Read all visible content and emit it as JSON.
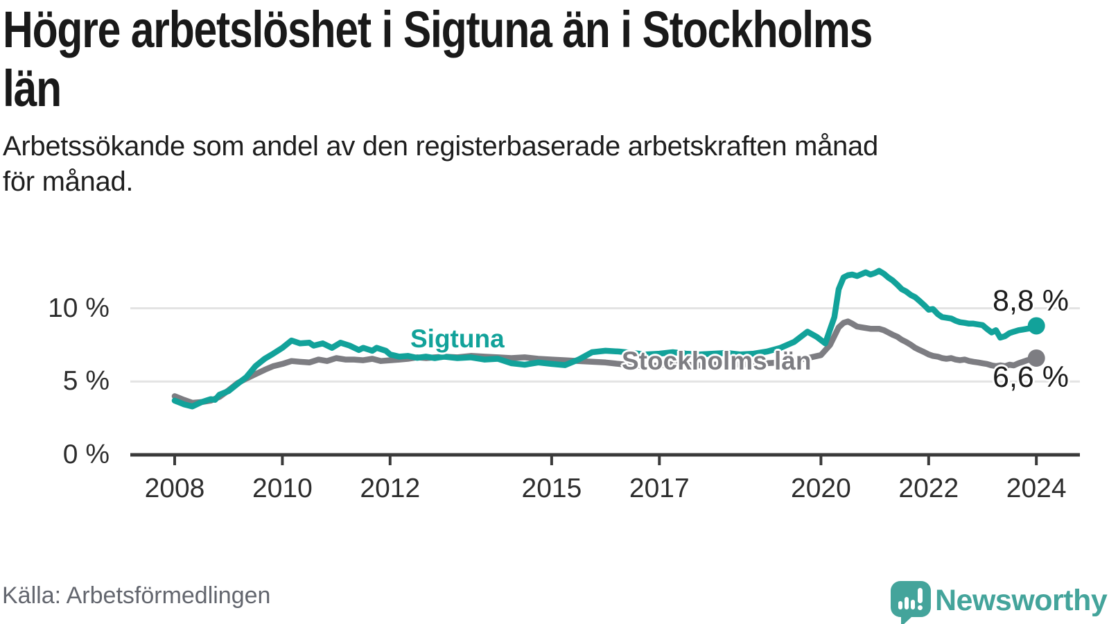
{
  "header": {
    "title_line1": "Högre arbetslöshet i Sigtuna än i Stockholms",
    "title_line2": "län",
    "subtitle_line1": "Arbetssökande som andel av den registerbaserade arbetskraften månad",
    "subtitle_line2": "för månad."
  },
  "source_text": "Källa: Arbetsförmedlingen",
  "logo": {
    "brand": "Newsworthy",
    "icon": "newsworthy-bubble-chart-icon",
    "color": "#44a49b"
  },
  "colors": {
    "sigtuna_teal": "#12a29a",
    "stockholm_gray": "#7d7d82",
    "gridline": "#e3e3e3",
    "axis": "#3a3a3a",
    "tick_text": "#2d2d2d",
    "title_text": "#191919",
    "source_text": "#63666e"
  },
  "chart_data": {
    "type": "line",
    "title": "Högre arbetslöshet i Sigtuna än i Stockholms län",
    "subtitle": "Arbetssökande som andel av den registerbaserade arbetskraften månad för månad.",
    "unit": "%",
    "xlabel": "",
    "ylabel": "",
    "grid": "horizontal",
    "legend_position": "inline-labels",
    "xlim": [
      2007.2,
      2024.8
    ],
    "ylim": [
      0,
      13.1
    ],
    "x_ticks": [
      2008,
      2010,
      2012,
      2015,
      2017,
      2020,
      2022,
      2024
    ],
    "y_ticks": [
      {
        "value": 0,
        "label": "0 %"
      },
      {
        "value": 5,
        "label": "5 %"
      },
      {
        "value": 10,
        "label": "10 %"
      }
    ],
    "series": [
      {
        "name": "Sigtuna",
        "color": "#12a29a",
        "end_label": "8,8 %",
        "end_value": 8.8,
        "points": [
          [
            2008.0,
            3.7
          ],
          [
            2008.17,
            3.45
          ],
          [
            2008.33,
            3.3
          ],
          [
            2008.5,
            3.6
          ],
          [
            2008.67,
            3.8
          ],
          [
            2008.75,
            3.75
          ],
          [
            2008.83,
            4.1
          ],
          [
            2009.0,
            4.35
          ],
          [
            2009.17,
            4.85
          ],
          [
            2009.33,
            5.3
          ],
          [
            2009.5,
            6.05
          ],
          [
            2009.67,
            6.55
          ],
          [
            2009.83,
            6.9
          ],
          [
            2010.0,
            7.3
          ],
          [
            2010.17,
            7.8
          ],
          [
            2010.33,
            7.6
          ],
          [
            2010.5,
            7.65
          ],
          [
            2010.58,
            7.45
          ],
          [
            2010.75,
            7.6
          ],
          [
            2010.92,
            7.3
          ],
          [
            2011.08,
            7.65
          ],
          [
            2011.25,
            7.45
          ],
          [
            2011.42,
            7.15
          ],
          [
            2011.5,
            7.3
          ],
          [
            2011.67,
            7.1
          ],
          [
            2011.75,
            7.3
          ],
          [
            2011.92,
            7.1
          ],
          [
            2012.0,
            6.85
          ],
          [
            2012.17,
            6.7
          ],
          [
            2012.33,
            6.75
          ],
          [
            2012.5,
            6.62
          ],
          [
            2012.67,
            6.7
          ],
          [
            2012.83,
            6.6
          ],
          [
            2013.0,
            6.7
          ],
          [
            2013.25,
            6.6
          ],
          [
            2013.5,
            6.65
          ],
          [
            2013.75,
            6.5
          ],
          [
            2014.0,
            6.55
          ],
          [
            2014.25,
            6.25
          ],
          [
            2014.5,
            6.15
          ],
          [
            2014.75,
            6.3
          ],
          [
            2015.0,
            6.2
          ],
          [
            2015.25,
            6.12
          ],
          [
            2015.5,
            6.5
          ],
          [
            2015.75,
            7.0
          ],
          [
            2016.0,
            7.1
          ],
          [
            2016.25,
            7.05
          ],
          [
            2016.5,
            6.95
          ],
          [
            2016.75,
            6.85
          ],
          [
            2017.0,
            6.9
          ],
          [
            2017.25,
            7.0
          ],
          [
            2017.5,
            6.9
          ],
          [
            2017.75,
            6.85
          ],
          [
            2018.0,
            6.9
          ],
          [
            2018.25,
            6.95
          ],
          [
            2018.5,
            6.85
          ],
          [
            2018.75,
            6.9
          ],
          [
            2019.0,
            7.05
          ],
          [
            2019.25,
            7.3
          ],
          [
            2019.5,
            7.7
          ],
          [
            2019.75,
            8.4
          ],
          [
            2019.92,
            8.05
          ],
          [
            2020.08,
            7.6
          ],
          [
            2020.25,
            9.4
          ],
          [
            2020.33,
            11.3
          ],
          [
            2020.42,
            12.1
          ],
          [
            2020.5,
            12.25
          ],
          [
            2020.58,
            12.3
          ],
          [
            2020.67,
            12.2
          ],
          [
            2020.83,
            12.45
          ],
          [
            2020.92,
            12.3
          ],
          [
            2021.0,
            12.4
          ],
          [
            2021.08,
            12.55
          ],
          [
            2021.17,
            12.35
          ],
          [
            2021.25,
            12.1
          ],
          [
            2021.33,
            11.9
          ],
          [
            2021.42,
            11.6
          ],
          [
            2021.5,
            11.3
          ],
          [
            2021.58,
            11.15
          ],
          [
            2021.67,
            10.9
          ],
          [
            2021.75,
            10.75
          ],
          [
            2021.83,
            10.5
          ],
          [
            2021.92,
            10.2
          ],
          [
            2022.0,
            9.9
          ],
          [
            2022.08,
            9.95
          ],
          [
            2022.17,
            9.6
          ],
          [
            2022.25,
            9.4
          ],
          [
            2022.33,
            9.35
          ],
          [
            2022.42,
            9.3
          ],
          [
            2022.5,
            9.15
          ],
          [
            2022.58,
            9.05
          ],
          [
            2022.67,
            9.0
          ],
          [
            2022.75,
            8.95
          ],
          [
            2022.83,
            8.95
          ],
          [
            2022.92,
            8.9
          ],
          [
            2023.0,
            8.85
          ],
          [
            2023.08,
            8.6
          ],
          [
            2023.17,
            8.35
          ],
          [
            2023.25,
            8.5
          ],
          [
            2023.33,
            8.0
          ],
          [
            2023.42,
            8.1
          ],
          [
            2023.5,
            8.3
          ],
          [
            2023.58,
            8.4
          ],
          [
            2023.67,
            8.5
          ],
          [
            2023.75,
            8.55
          ],
          [
            2023.83,
            8.6
          ],
          [
            2023.92,
            8.65
          ],
          [
            2024.0,
            8.8
          ]
        ]
      },
      {
        "name": "Stockholms län",
        "color": "#7d7d82",
        "end_label": "6,6 %",
        "end_value": 6.6,
        "points": [
          [
            2008.0,
            4.0
          ],
          [
            2008.17,
            3.75
          ],
          [
            2008.33,
            3.55
          ],
          [
            2008.5,
            3.6
          ],
          [
            2008.67,
            3.7
          ],
          [
            2008.83,
            3.95
          ],
          [
            2009.0,
            4.4
          ],
          [
            2009.17,
            4.9
          ],
          [
            2009.33,
            5.2
          ],
          [
            2009.5,
            5.5
          ],
          [
            2009.67,
            5.8
          ],
          [
            2009.83,
            6.05
          ],
          [
            2010.0,
            6.2
          ],
          [
            2010.17,
            6.4
          ],
          [
            2010.33,
            6.35
          ],
          [
            2010.5,
            6.3
          ],
          [
            2010.67,
            6.5
          ],
          [
            2010.83,
            6.4
          ],
          [
            2011.0,
            6.6
          ],
          [
            2011.17,
            6.5
          ],
          [
            2011.33,
            6.5
          ],
          [
            2011.5,
            6.45
          ],
          [
            2011.67,
            6.55
          ],
          [
            2011.83,
            6.4
          ],
          [
            2012.0,
            6.45
          ],
          [
            2012.17,
            6.5
          ],
          [
            2012.33,
            6.55
          ],
          [
            2012.5,
            6.65
          ],
          [
            2012.67,
            6.6
          ],
          [
            2012.83,
            6.65
          ],
          [
            2013.0,
            6.7
          ],
          [
            2013.25,
            6.65
          ],
          [
            2013.5,
            6.75
          ],
          [
            2013.75,
            6.7
          ],
          [
            2014.0,
            6.65
          ],
          [
            2014.25,
            6.6
          ],
          [
            2014.5,
            6.65
          ],
          [
            2014.75,
            6.55
          ],
          [
            2015.0,
            6.5
          ],
          [
            2015.25,
            6.45
          ],
          [
            2015.5,
            6.4
          ],
          [
            2015.75,
            6.35
          ],
          [
            2016.0,
            6.3
          ],
          [
            2016.25,
            6.2
          ],
          [
            2016.5,
            6.1
          ],
          [
            2016.75,
            6.05
          ],
          [
            2017.0,
            6.1
          ],
          [
            2017.25,
            6.2
          ],
          [
            2017.5,
            6.15
          ],
          [
            2017.75,
            6.1
          ],
          [
            2018.0,
            6.15
          ],
          [
            2018.25,
            6.2
          ],
          [
            2018.5,
            6.15
          ],
          [
            2018.75,
            6.2
          ],
          [
            2019.0,
            6.25
          ],
          [
            2019.25,
            6.3
          ],
          [
            2019.5,
            6.4
          ],
          [
            2019.75,
            6.6
          ],
          [
            2020.0,
            6.8
          ],
          [
            2020.17,
            7.5
          ],
          [
            2020.33,
            8.7
          ],
          [
            2020.42,
            9.0
          ],
          [
            2020.5,
            9.1
          ],
          [
            2020.58,
            8.95
          ],
          [
            2020.67,
            8.75
          ],
          [
            2020.75,
            8.7
          ],
          [
            2020.92,
            8.6
          ],
          [
            2021.08,
            8.6
          ],
          [
            2021.17,
            8.5
          ],
          [
            2021.25,
            8.35
          ],
          [
            2021.33,
            8.2
          ],
          [
            2021.42,
            8.05
          ],
          [
            2021.5,
            7.85
          ],
          [
            2021.58,
            7.7
          ],
          [
            2021.67,
            7.5
          ],
          [
            2021.75,
            7.3
          ],
          [
            2021.83,
            7.15
          ],
          [
            2021.92,
            7.0
          ],
          [
            2022.0,
            6.85
          ],
          [
            2022.08,
            6.75
          ],
          [
            2022.17,
            6.7
          ],
          [
            2022.25,
            6.6
          ],
          [
            2022.33,
            6.55
          ],
          [
            2022.42,
            6.6
          ],
          [
            2022.5,
            6.5
          ],
          [
            2022.58,
            6.45
          ],
          [
            2022.67,
            6.5
          ],
          [
            2022.75,
            6.4
          ],
          [
            2022.83,
            6.35
          ],
          [
            2022.92,
            6.3
          ],
          [
            2023.0,
            6.25
          ],
          [
            2023.08,
            6.2
          ],
          [
            2023.17,
            6.1
          ],
          [
            2023.25,
            6.05
          ],
          [
            2023.33,
            6.1
          ],
          [
            2023.42,
            6.05
          ],
          [
            2023.5,
            6.15
          ],
          [
            2023.58,
            6.1
          ],
          [
            2023.67,
            6.25
          ],
          [
            2023.75,
            6.35
          ],
          [
            2023.83,
            6.45
          ],
          [
            2023.92,
            6.5
          ],
          [
            2024.0,
            6.6
          ]
        ]
      }
    ]
  }
}
